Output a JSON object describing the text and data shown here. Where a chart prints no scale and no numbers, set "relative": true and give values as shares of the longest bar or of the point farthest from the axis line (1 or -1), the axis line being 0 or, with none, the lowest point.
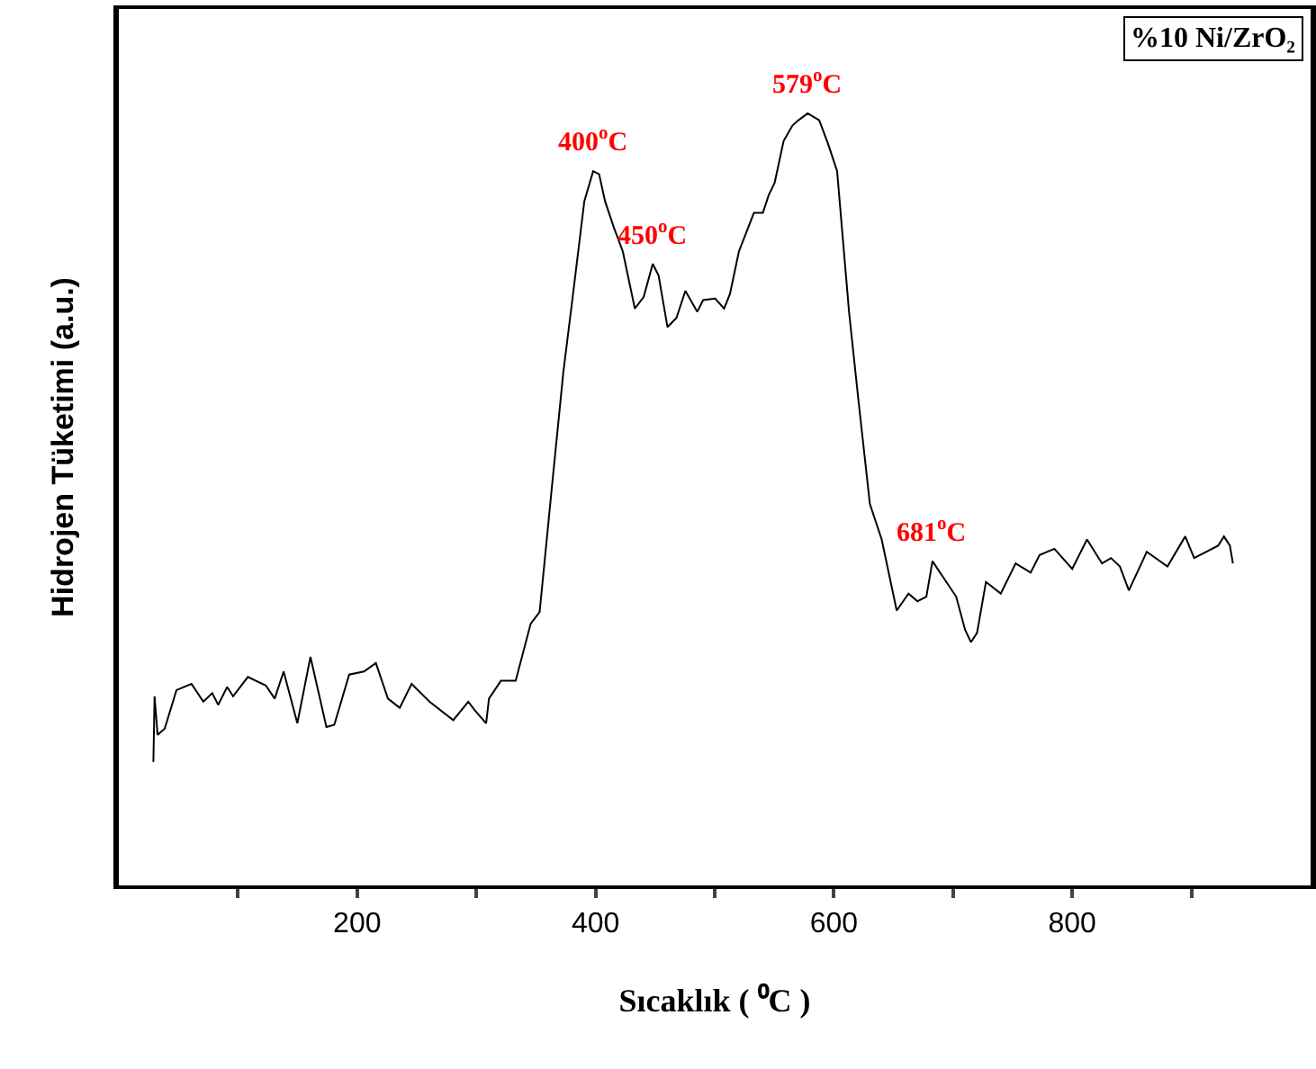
{
  "chart_data": {
    "type": "line",
    "relative": true,
    "xlabel": "Sıcaklık ( ⁰C )",
    "ylabel": "Hidrojen Tüketimi (a.u.)",
    "xlim": [
      0,
      1000
    ],
    "xticks": [
      {
        "value": 100,
        "label": null
      },
      200,
      {
        "value": 300,
        "label": null
      },
      400,
      {
        "value": 500,
        "label": null
      },
      600,
      {
        "value": 700,
        "label": null
      },
      800,
      {
        "value": 900,
        "label": null
      }
    ],
    "marker": "none",
    "line_style": "solid",
    "x": [
      29,
      30,
      32.5,
      38.5,
      48.4,
      61,
      70.9,
      78.4,
      83.4,
      90.9,
      95.9,
      108.3,
      123.3,
      130.8,
      138.3,
      149.8,
      160.8,
      174.2,
      180.8,
      193.3,
      205.7,
      215.7,
      225.8,
      235.7,
      245.7,
      260.7,
      280.6,
      293.2,
      298.1,
      308.2,
      310.6,
      320.6,
      333,
      345.6,
      353.1,
      363,
      373,
      380.5,
      390.6,
      398,
      403,
      408,
      415.4,
      422.9,
      433,
      440.4,
      448,
      452.9,
      460.4,
      467.9,
      475.4,
      485.4,
      490.3,
      500.4,
      507.9,
      512.8,
      520.3,
      532.9,
      540.4,
      545.3,
      550.3,
      557.8,
      565.2,
      570.3,
      578,
      587.7,
      595.2,
      602.7,
      612.7,
      620.2,
      630.2,
      640.1,
      652.7,
      662.6,
      670.1,
      677.6,
      682.7,
      692.6,
      702.6,
      710.1,
      715,
      720.1,
      727.6,
      740,
      752.5,
      765.1,
      772.6,
      785,
      800,
      812.4,
      825,
      832.5,
      840,
      847.5,
      862.5,
      879.9,
      894.8,
      902.3,
      922.4,
      927.3,
      932.3,
      934.8
    ],
    "series": [
      {
        "color": "#000000",
        "values": [
          0.16,
          0.245,
          0.195,
          0.203,
          0.253,
          0.261,
          0.238,
          0.249,
          0.234,
          0.257,
          0.245,
          0.27,
          0.259,
          0.242,
          0.277,
          0.21,
          0.296,
          0.205,
          0.208,
          0.273,
          0.277,
          0.288,
          0.242,
          0.23,
          0.261,
          0.238,
          0.214,
          0.238,
          0.228,
          0.21,
          0.242,
          0.265,
          0.265,
          0.339,
          0.354,
          0.51,
          0.665,
          0.758,
          0.886,
          0.925,
          0.921,
          0.886,
          0.852,
          0.821,
          0.747,
          0.762,
          0.805,
          0.79,
          0.723,
          0.735,
          0.77,
          0.743,
          0.758,
          0.76,
          0.747,
          0.766,
          0.821,
          0.871,
          0.871,
          0.894,
          0.91,
          0.964,
          0.984,
          0.991,
          1,
          0.991,
          0.96,
          0.925,
          0.743,
          0.634,
          0.494,
          0.448,
          0.356,
          0.378,
          0.368,
          0.374,
          0.42,
          0.397,
          0.374,
          0.331,
          0.315,
          0.327,
          0.393,
          0.378,
          0.417,
          0.405,
          0.428,
          0.436,
          0.41,
          0.448,
          0.417,
          0.424,
          0.413,
          0.382,
          0.432,
          0.413,
          0.452,
          0.424,
          0.44,
          0.452,
          0.44,
          0.417
        ]
      }
    ],
    "annotations": [
      {
        "text": "400$^{o}$C",
        "x": 398,
        "y": 0.925
      },
      {
        "text": "450$^{o}$C",
        "x": 448,
        "y": 0.805
      },
      {
        "text": "579$^{o}$C",
        "x": 578,
        "y": 1
      },
      {
        "text": "681$^{o}$C",
        "x": 682.7,
        "y": 0.42
      },
      "%10 Ni/ZrO₂"
    ]
  }
}
